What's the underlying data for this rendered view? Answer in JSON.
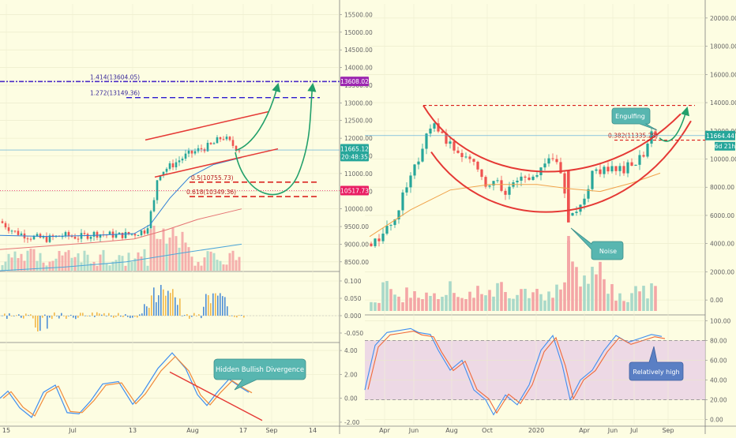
{
  "chart_data": [
    {
      "panel": "left-price",
      "type": "candlestick",
      "title": "",
      "y_ticks": [
        "15500.00",
        "15000.00",
        "14500.00",
        "14000.00",
        "13500.00",
        "13000.00",
        "12500.00",
        "12000.00",
        "11500.00",
        "11000.00",
        "10500.00",
        "10000.00",
        "9500.00",
        "9000.00",
        "8500.00"
      ],
      "y_tick_values": [
        15500,
        15000,
        14500,
        14000,
        13500,
        13000,
        12500,
        12000,
        11500,
        11000,
        10500,
        10000,
        9500,
        9000,
        8500
      ],
      "ylim": [
        8250,
        15800
      ],
      "x_ticks": [
        "15",
        "Jul",
        "13",
        "Aug",
        "17",
        "Sep",
        "14"
      ],
      "fib_labels": [
        "1.414(13604.05)",
        "1.272(13149.36)",
        "0.5(10755.73)",
        "0.618(10349.36)"
      ],
      "fib_values": [
        13604.05,
        13149.36,
        10755.73,
        10349.36
      ],
      "price_badges": [
        "13608.02",
        "11665.12",
        "20:48:35",
        "10517.73"
      ],
      "badge_colors": [
        "#9c27b0",
        "#26a69a",
        "#26a69a",
        "#e91e63"
      ]
    },
    {
      "panel": "left-histogram",
      "type": "bar",
      "y_ticks": [
        "0.100",
        "0.050",
        "0.000",
        "-0.050"
      ],
      "y_tick_values": [
        0.1,
        0.05,
        0,
        -0.05
      ],
      "ylim": [
        -0.075,
        0.125
      ]
    },
    {
      "panel": "left-oscillator",
      "type": "line",
      "y_ticks": [
        "4.00",
        "2.00",
        "0.00",
        "-2.00"
      ],
      "y_tick_values": [
        4,
        2,
        0,
        -2
      ],
      "ylim": [
        -2.2,
        4.6
      ],
      "annotation": "Hidden Bullish Divergence"
    },
    {
      "panel": "right-price",
      "type": "candlestick",
      "y_ticks": [
        "20000.00",
        "18000.00",
        "16000.00",
        "14000.00",
        "12000.00",
        "10000.00",
        "8000.00",
        "6000.00",
        "4000.00",
        "2000.00",
        "0.00"
      ],
      "y_tick_values": [
        20000,
        18000,
        16000,
        14000,
        12000,
        10000,
        8000,
        6000,
        4000,
        2000,
        0
      ],
      "ylim": [
        -1000,
        21000
      ],
      "x_ticks": [
        "Apr",
        "Jun",
        "Aug",
        "Oct",
        "2020",
        "Apr",
        "Jun",
        "Jul",
        "Sep"
      ],
      "fib_label": "0.382(11335.28)",
      "price_badges": [
        "11664.44",
        "6d 21h"
      ],
      "annotations": [
        "Engulfing",
        "Noise"
      ]
    },
    {
      "panel": "right-stochastic",
      "type": "line",
      "y_ticks": [
        "100.00",
        "80.00",
        "60.00",
        "40.00",
        "20.00",
        "0.00"
      ],
      "y_tick_values": [
        100,
        80,
        60,
        40,
        20,
        0
      ],
      "ylim": [
        -5,
        105
      ],
      "annotation": "Relatively high"
    }
  ],
  "colors": {
    "background": "#fdfde2",
    "up": "#26a69a",
    "down": "#ef5350",
    "fib_purple": "#4b2bc7",
    "fib_red": "#d50000",
    "curve_red": "#e53935",
    "projection_green": "#22a06b",
    "stoch_band": "#e8cfe6"
  }
}
